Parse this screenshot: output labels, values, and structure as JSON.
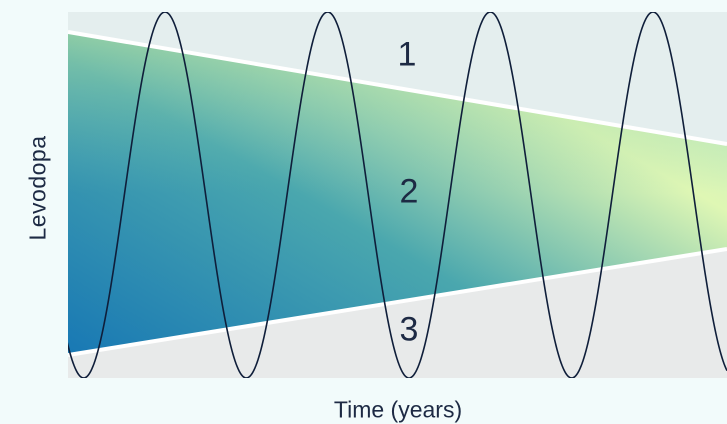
{
  "figure": {
    "y_axis_label": "Levodopa",
    "x_axis_label": "Time (years)",
    "zones": [
      {
        "label": "1"
      },
      {
        "label": "2"
      },
      {
        "label": "3"
      }
    ],
    "colors": {
      "page_background": "#f2fbfb",
      "upper_zone": "#e4eeee",
      "lower_zone": "#e8eaea",
      "wedge_dark_blue": "#1878b4",
      "wedge_teal": "#4aa7ae",
      "wedge_light_green": "#dff7b4",
      "boundary_line": "#ffffff",
      "oscillation_line": "#0f1e3a"
    },
    "oscillation": {
      "peaks": 4,
      "description_shape": "sinusoidal"
    }
  }
}
